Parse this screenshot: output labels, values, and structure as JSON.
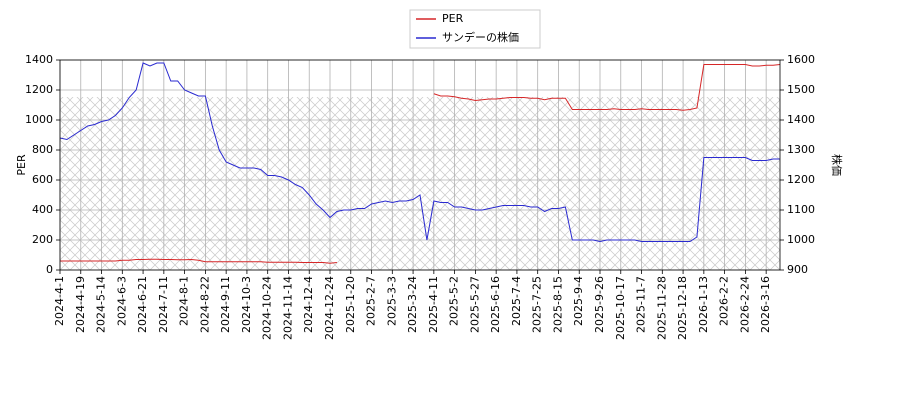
{
  "chart_data": {
    "type": "line",
    "x": [
      "2024-4-1",
      null,
      null,
      "2024-4-19",
      null,
      null,
      "2024-5-14",
      null,
      null,
      "2024-6-3",
      null,
      null,
      "2024-6-21",
      null,
      null,
      "2024-7-11",
      null,
      null,
      "2024-8-1",
      null,
      null,
      "2024-8-22",
      null,
      null,
      "2024-9-11",
      null,
      null,
      "2024-10-3",
      null,
      null,
      "2024-10-24",
      null,
      null,
      "2024-11-14",
      null,
      null,
      "2024-12-4",
      null,
      null,
      "2024-12-24",
      null,
      null,
      "2025-1-20",
      null,
      null,
      "2025-2-7",
      null,
      null,
      "2025-3-3",
      null,
      null,
      "2025-3-24",
      null,
      null,
      "2025-4-11",
      null,
      null,
      "2025-5-2",
      null,
      null,
      "2025-5-27",
      null,
      null,
      "2025-6-16",
      null,
      null,
      "2025-7-4",
      null,
      null,
      "2025-7-25",
      null,
      null,
      "2025-8-15",
      null,
      null,
      "2025-9-4",
      null,
      null,
      "2025-9-26",
      null,
      null,
      "2025-10-17",
      null,
      null,
      "2025-11-7",
      null,
      null,
      "2025-11-28",
      null,
      null,
      "2025-12-18",
      null,
      null,
      "2026-1-13",
      null,
      null,
      "2026-2-2",
      null,
      null,
      "2026-2-24",
      null,
      null,
      "2026-3-16",
      null,
      null
    ],
    "series": [
      {
        "name": "PER",
        "color": "#d62728",
        "axis": "y",
        "values": [
          60,
          60,
          60,
          60,
          60,
          60,
          60,
          60,
          60,
          65,
          65,
          70,
          70,
          72,
          72,
          70,
          70,
          68,
          68,
          70,
          65,
          55,
          55,
          55,
          55,
          55,
          55,
          55,
          55,
          55,
          52,
          52,
          52,
          52,
          52,
          50,
          50,
          50,
          50,
          45,
          50,
          null,
          null,
          null,
          null,
          null,
          null,
          null,
          null,
          null,
          null,
          null,
          null,
          null,
          1175,
          1160,
          1160,
          1155,
          1145,
          1140,
          1130,
          1135,
          1140,
          1140,
          1145,
          1150,
          1150,
          1150,
          1145,
          1145,
          1135,
          1145,
          1145,
          1145,
          1070,
          1070,
          1070,
          1070,
          1070,
          1070,
          1075,
          1070,
          1070,
          1070,
          1075,
          1070,
          1070,
          1070,
          1070,
          1070,
          1065,
          1070,
          1080,
          1370,
          1370,
          1370,
          1370,
          1370,
          1370,
          1370,
          1360,
          1360,
          1365,
          1365,
          1370
        ]
      },
      {
        "name": "サンデーの株価",
        "color": "#2a2ad0",
        "axis": "y2",
        "values": [
          1340,
          1335,
          1350,
          1365,
          1380,
          1385,
          1395,
          1400,
          1415,
          1440,
          1475,
          1500,
          1590,
          1580,
          1590,
          1590,
          1530,
          1530,
          1500,
          1490,
          1480,
          1480,
          1380,
          1300,
          1260,
          1250,
          1240,
          1240,
          1240,
          1235,
          1215,
          1215,
          1210,
          1200,
          1185,
          1175,
          1150,
          1120,
          1100,
          1075,
          1095,
          1100,
          1100,
          1105,
          1105,
          1120,
          1125,
          1130,
          1125,
          1130,
          1130,
          1135,
          1150,
          1000,
          1130,
          1125,
          1125,
          1110,
          1110,
          1105,
          1100,
          1100,
          1105,
          1110,
          1115,
          1115,
          1115,
          1115,
          1110,
          1110,
          1095,
          1105,
          1105,
          1110,
          1000,
          1000,
          1000,
          1000,
          995,
          1000,
          1000,
          1000,
          1000,
          1000,
          995,
          995,
          995,
          995,
          995,
          995,
          995,
          995,
          1010,
          1275,
          1275,
          1275,
          1275,
          1275,
          1275,
          1275,
          1265,
          1265,
          1265,
          1270,
          1270
        ]
      }
    ],
    "ylabel": "PER",
    "y2label": "株価",
    "ylim": [
      0,
      1400
    ],
    "yticks": [
      0,
      200,
      400,
      600,
      800,
      1000,
      1200,
      1400
    ],
    "y2lim": [
      900,
      1600
    ],
    "y2ticks": [
      900,
      1000,
      1100,
      1200,
      1300,
      1400,
      1500,
      1600
    ],
    "grid": true,
    "legend": "top"
  }
}
